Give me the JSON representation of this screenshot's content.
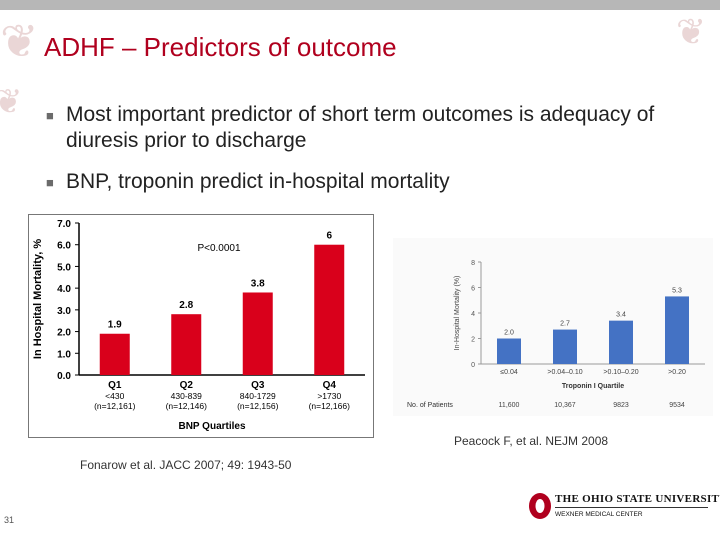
{
  "slide": {
    "title": "ADHF – Predictors of outcome",
    "bullets": [
      "Most important predictor of short term outcomes is adequacy of diuresis prior to discharge",
      "BNP, troponin predict in-hospital mortality"
    ],
    "citation_left": "Fonarow et al. JACC 2007; 49: 1943-50",
    "citation_right": "Peacock F, et al. NEJM 2008",
    "slide_number": "31",
    "logo_name": "THE OHIO STATE UNIVERSITY",
    "logo_sub": "WEXNER MEDICAL CENTER"
  },
  "colors": {
    "accent": "#b0001e",
    "chart_bar_bnp": "#d9001b",
    "chart_bar_trop": "#4472c4"
  },
  "chart_data": [
    {
      "type": "bar",
      "title": "",
      "annotation": "P<0.0001",
      "ylabel": "In Hospital Mortality, %",
      "xlabel": "BNP Quartiles",
      "ylim": [
        0,
        7
      ],
      "yticks": [
        "0.0",
        "1.0",
        "2.0",
        "3.0",
        "4.0",
        "5.0",
        "6.0",
        "7.0"
      ],
      "categories": [
        "Q1",
        "Q2",
        "Q3",
        "Q4"
      ],
      "category_ranges": [
        "<430",
        "430-839",
        "840-1729",
        ">1730"
      ],
      "category_n": [
        "(n=12,161)",
        "(n=12,146)",
        "(n=12,156)",
        "(n=12,166)"
      ],
      "values": [
        1.9,
        2.8,
        3.8,
        6
      ],
      "value_labels": [
        "1.9",
        "2.8",
        "3.8",
        "6"
      ],
      "grid": false
    },
    {
      "type": "bar",
      "title": "",
      "ylabel": "In-Hospital Mortality (%)",
      "xlabel": "Troponin I Quartile",
      "ylim": [
        0,
        8
      ],
      "yticks": [
        "0",
        "2",
        "4",
        "6",
        "8"
      ],
      "categories": [
        "≤0.04",
        ">0.04–0.10",
        ">0.10–0.20",
        ">0.20"
      ],
      "values": [
        2.0,
        2.7,
        3.4,
        5.3
      ],
      "value_labels": [
        "2.0",
        "2.7",
        "3.4",
        "5.3"
      ],
      "patients_label": "No. of Patients",
      "patients": [
        "11,600",
        "10,367",
        "9823",
        "9534"
      ],
      "grid": false
    }
  ]
}
